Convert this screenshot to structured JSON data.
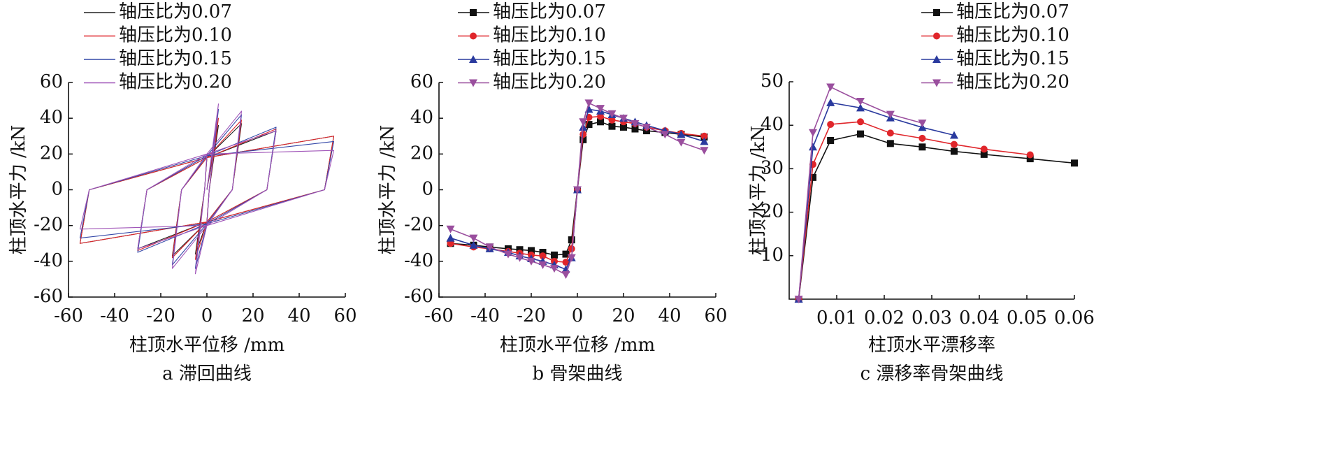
{
  "chart_data": [
    {
      "type": "line",
      "caption": "a 滞回曲线",
      "x_label": "柱顶水平位移 /mm",
      "y_label": "柱顶水平力 /kN",
      "xlim": [
        -60,
        60
      ],
      "xticks": [
        -60,
        -40,
        -20,
        0,
        20,
        40,
        60
      ],
      "ylim": [
        -60,
        60
      ],
      "yticks": [
        -60,
        -40,
        -20,
        0,
        20,
        40,
        60
      ],
      "x": [
        0,
        5,
        1,
        0,
        -5,
        -1,
        0,
        15,
        11,
        0,
        -15,
        -11,
        0,
        30,
        26,
        0,
        -30,
        -26,
        0,
        55,
        51,
        0,
        -55,
        -51,
        0
      ],
      "series": [
        {
          "name": "轴压比为0.07",
          "color": "#222222",
          "values": [
            0,
            36,
            0,
            -18,
            -36,
            0,
            18,
            37,
            0,
            -18,
            -37,
            0,
            18,
            33,
            0,
            -18,
            -33,
            0,
            18,
            30,
            0,
            -18,
            -30,
            0,
            18
          ]
        },
        {
          "name": "轴压比为0.10",
          "color": "#e0262b",
          "values": [
            0,
            40,
            0,
            -18,
            -39,
            0,
            18,
            39,
            0,
            -18,
            -38,
            0,
            18,
            34,
            0,
            -18,
            -34,
            0,
            18,
            30,
            0,
            -18,
            -30,
            0,
            18
          ]
        },
        {
          "name": "轴压比为0.15",
          "color": "#3448a8",
          "values": [
            0,
            45,
            0,
            -19,
            -44,
            0,
            19,
            42,
            0,
            -19,
            -42,
            0,
            19,
            35,
            0,
            -19,
            -35,
            0,
            19,
            27,
            0,
            -19,
            -27,
            0,
            19
          ]
        },
        {
          "name": "轴压比为0.20",
          "color": "#a055b8",
          "values": [
            0,
            48,
            0,
            -20,
            -47,
            0,
            20,
            44,
            0,
            -20,
            -44,
            0,
            20,
            33,
            0,
            -20,
            -33,
            0,
            20,
            22,
            0,
            -20,
            -22,
            0,
            20
          ]
        }
      ]
    },
    {
      "type": "line",
      "caption": "b 骨架曲线",
      "x_label": "柱顶水平位移 /mm",
      "y_label": "柱顶水平力 /kN",
      "xlim": [
        -60,
        60
      ],
      "xticks": [
        -60,
        -40,
        -20,
        0,
        20,
        40,
        60
      ],
      "ylim": [
        -60,
        60
      ],
      "yticks": [
        -60,
        -40,
        -20,
        0,
        20,
        40,
        60
      ],
      "x": [
        -55,
        -45,
        -38,
        -30,
        -25,
        -20,
        -15,
        -10,
        -5,
        -2.5,
        0,
        2.5,
        5,
        10,
        15,
        20,
        25,
        30,
        38,
        45,
        55
      ],
      "series": [
        {
          "name": "轴压比为0.07",
          "color": "#111111",
          "marker": "square",
          "values": [
            -30,
            -31,
            -32,
            -33,
            -33.5,
            -34,
            -35,
            -36.5,
            -36,
            -28,
            0,
            28,
            36.5,
            38,
            35.5,
            35,
            34,
            33,
            32,
            31,
            29.5
          ]
        },
        {
          "name": "轴压比为0.10",
          "color": "#e0262b",
          "marker": "circle",
          "values": [
            -30,
            -32,
            -33,
            -34.5,
            -35.5,
            -36.5,
            -37,
            -40,
            -40.5,
            -33,
            0,
            31,
            40.5,
            41,
            39,
            38,
            37,
            35,
            33,
            31.5,
            30
          ]
        },
        {
          "name": "轴压比为0.15",
          "color": "#2a3a9e",
          "marker": "triangle-up",
          "values": [
            -27,
            -31,
            -33,
            -35,
            -37,
            -38.5,
            -40,
            -42,
            -44.5,
            -38,
            0,
            35,
            45,
            44,
            42,
            40,
            38,
            36,
            33,
            31,
            27
          ]
        },
        {
          "name": "轴压比为0.20",
          "color": "#9a4f9e",
          "marker": "triangle-down",
          "values": [
            -22,
            -27,
            -32,
            -36,
            -38,
            -40,
            -42,
            -44,
            -47.5,
            -38,
            0,
            38,
            48.5,
            45.5,
            42.5,
            40,
            37,
            35,
            31,
            26.5,
            22
          ]
        }
      ]
    },
    {
      "type": "line",
      "caption": "c 漂移率骨架曲线",
      "x_label": "柱顶水平漂移率",
      "y_label": "柱顶水平力 /kN",
      "xlim": [
        0,
        0.06
      ],
      "xticks": [
        0.01,
        0.02,
        0.03,
        0.04,
        0.05,
        0.06
      ],
      "ylim": [
        0,
        50
      ],
      "yticks": [
        10,
        20,
        30,
        40,
        50
      ],
      "x": [
        0.002,
        0.005,
        0.0087,
        0.015,
        0.0213,
        0.028,
        0.0347,
        0.041,
        0.0507,
        0.06
      ],
      "series": [
        {
          "name": "轴压比为0.07",
          "color": "#111111",
          "marker": "square",
          "values": [
            0,
            28,
            36.5,
            38,
            35.8,
            35,
            34,
            33.3,
            32.3,
            31.3
          ]
        },
        {
          "name": "轴压比为0.10",
          "color": "#e0262b",
          "marker": "circle",
          "values": [
            0,
            31,
            40.2,
            40.8,
            38.2,
            37,
            35.6,
            34.5,
            33.2,
            null
          ]
        },
        {
          "name": "轴压比为0.15",
          "color": "#2a3a9e",
          "marker": "triangle-up",
          "values": [
            0,
            35,
            45.2,
            44,
            41.7,
            39.5,
            37.7,
            null,
            null,
            null
          ]
        },
        {
          "name": "轴压比为0.20",
          "color": "#9a4f9e",
          "marker": "triangle-down",
          "values": [
            0,
            38.3,
            48.8,
            45.5,
            42.5,
            40.5,
            null,
            null,
            null,
            null
          ]
        }
      ]
    }
  ]
}
